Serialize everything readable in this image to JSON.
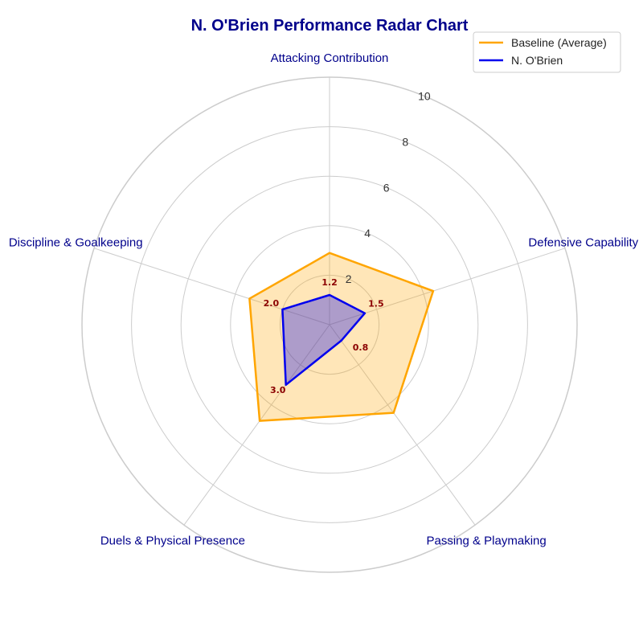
{
  "chart_data": {
    "type": "radar",
    "title": "N. O'Brien Performance Radar Chart",
    "categories": [
      "Attacking Contribution",
      "Defensive Capability",
      "Passing & Playmaking",
      "Duels & Physical Presence",
      "Discipline & Goalkeeping"
    ],
    "rlim": [
      0,
      10
    ],
    "rticks": [
      2,
      4,
      6,
      8,
      10
    ],
    "grid": true,
    "legend_position": "top-right",
    "series": [
      {
        "name": "Baseline (Average)",
        "values": [
          2.9,
          4.4,
          4.4,
          4.8,
          3.4
        ],
        "color": "#ffa500"
      },
      {
        "name": "N. O'Brien",
        "values": [
          1.2,
          1.5,
          0.8,
          3.0,
          2.0
        ],
        "color": "#0000ee",
        "data_labels": [
          "1.2",
          "1.5",
          "0.8",
          "3.0",
          "2.0"
        ]
      }
    ],
    "colors": {
      "title": "#00008b",
      "axis_label": "#00008b",
      "data_label": "#8b0000",
      "grid": "#cccccc"
    }
  }
}
